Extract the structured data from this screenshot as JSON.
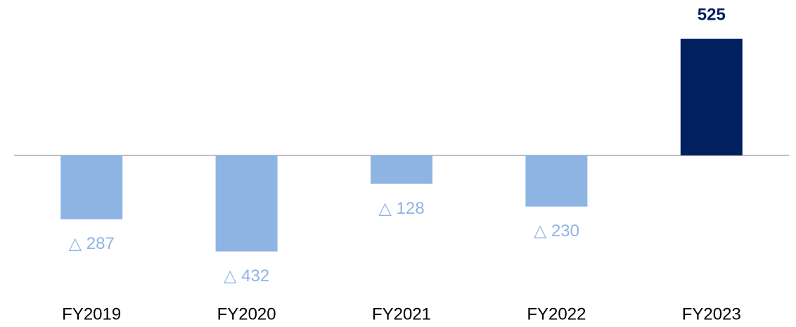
{
  "chart_data": {
    "type": "bar",
    "categories": [
      "FY2019",
      "FY2020",
      "FY2021",
      "FY2022",
      "FY2023"
    ],
    "values": [
      -287,
      -432,
      -128,
      -230,
      525
    ],
    "value_labels": [
      "△ 287",
      "△ 432",
      "△ 128",
      "△ 230",
      "525"
    ],
    "colors": [
      "#8eb4e3",
      "#8eb4e3",
      "#8eb4e3",
      "#8eb4e3",
      "#002060"
    ],
    "ylim": [
      -700,
      700
    ]
  }
}
